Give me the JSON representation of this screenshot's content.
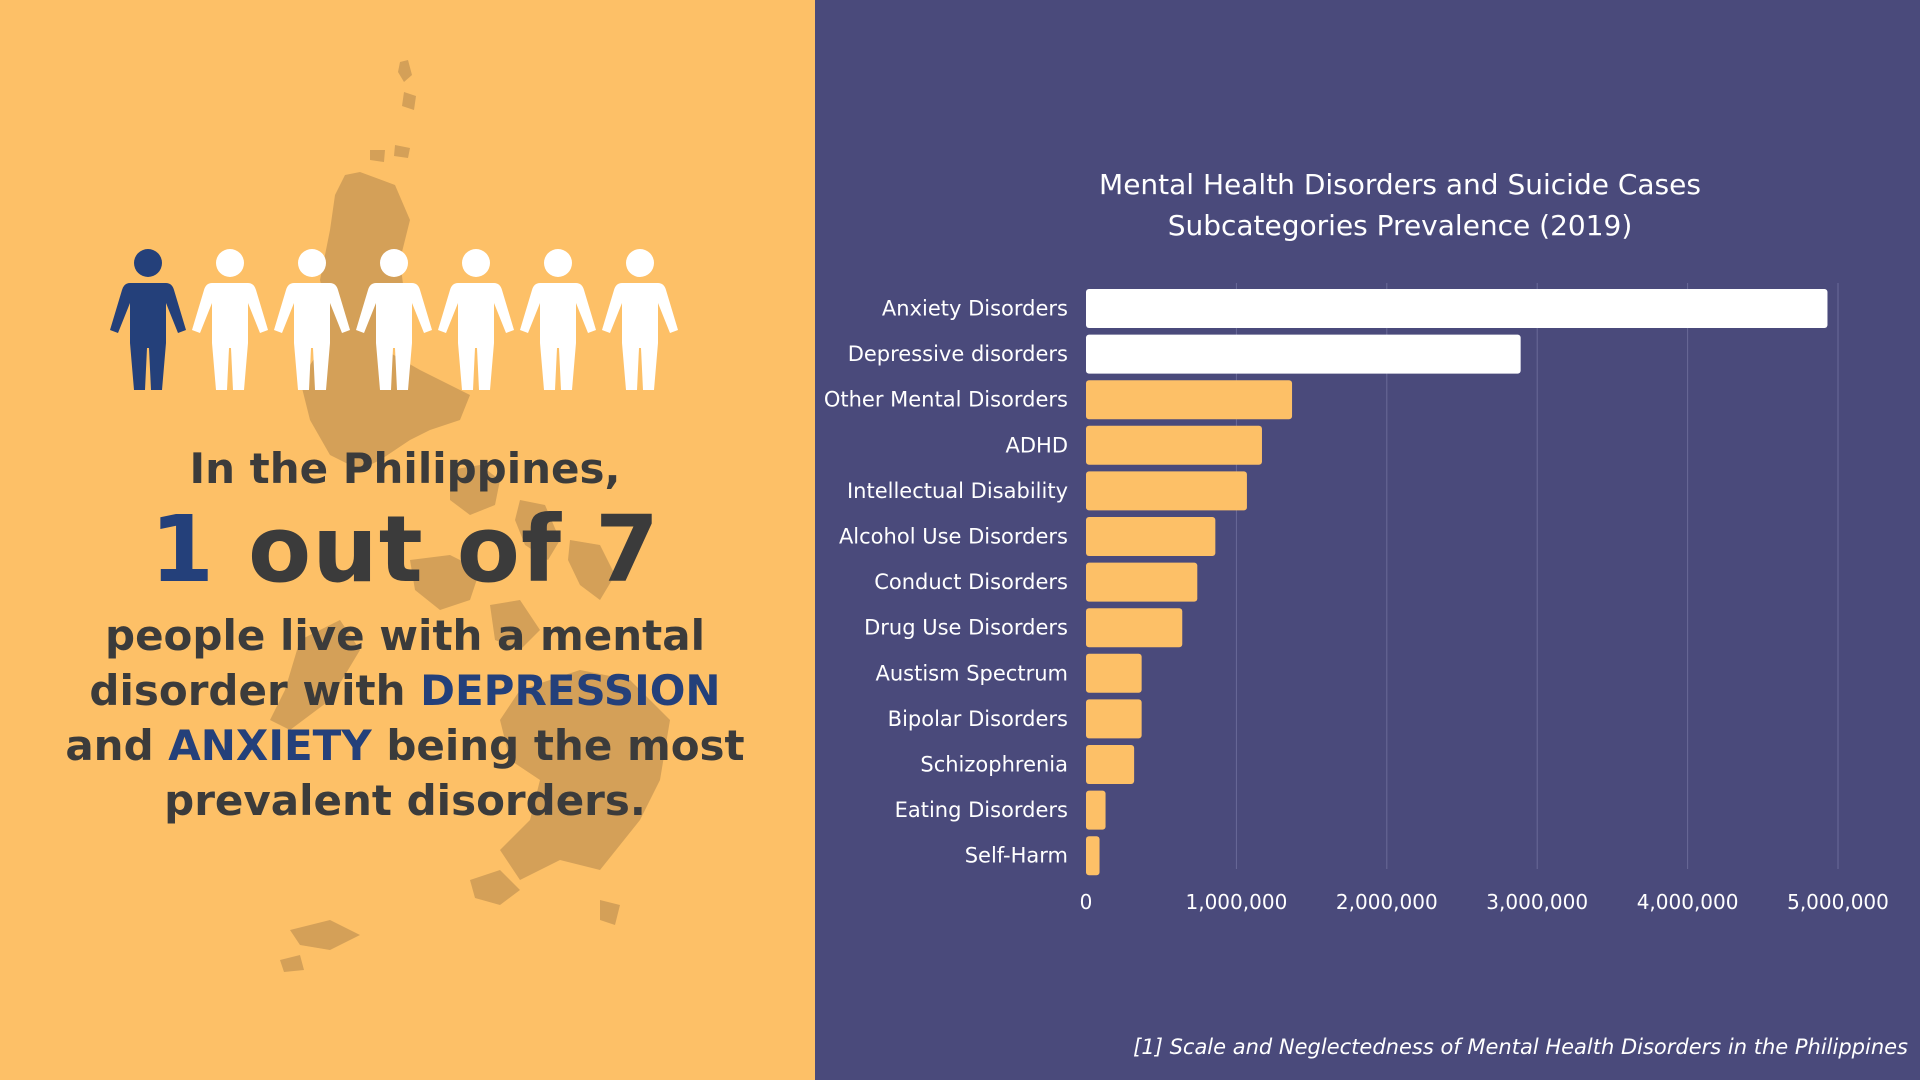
{
  "colors": {
    "left_bg": "#FDC067",
    "right_bg": "#4A4A7B",
    "highlight_bar": "#FFFFFF",
    "normal_bar": "#FDC067",
    "accent_blue": "#24407A",
    "text_dark": "#3B3B3B",
    "map_shadow": "#D4A058"
  },
  "infographic": {
    "highlighted_people": 1,
    "total_people": 7,
    "line1": "In the Philippines,",
    "stat_num": "1",
    "stat_rest": " out of 7",
    "line3_a": "people live with a mental",
    "line3_b": "disorder with ",
    "line3_c": "DEPRESSION",
    "line3_d": "and ",
    "line3_e": "ANXIETY",
    "line3_f": " being the most",
    "line3_g": "prevalent disorders."
  },
  "chart_data": {
    "type": "bar",
    "orientation": "horizontal",
    "title_line1": "Mental Health Disorders and Suicide Cases",
    "title_line2": "Subcategories Prevalence (2019)",
    "categories": [
      "Anxiety Disorders",
      "Depressive disorders",
      "Other Mental Disorders",
      "ADHD",
      "Intellectual Disability",
      "Alcohol Use Disorders",
      "Conduct Disorders",
      "Drug Use Disorders",
      "Austism Spectrum",
      "Bipolar Disorders",
      "Schizophrenia",
      "Eating Disorders",
      "Self-Harm"
    ],
    "values": [
      4930000,
      2890000,
      1370000,
      1170000,
      1070000,
      860000,
      740000,
      640000,
      370000,
      370000,
      320000,
      130000,
      90000
    ],
    "highlighted": [
      "Anxiety Disorders",
      "Depressive disorders"
    ],
    "xlim": [
      0,
      5000000
    ],
    "x_ticks": [
      0,
      1000000,
      2000000,
      3000000,
      4000000,
      5000000
    ],
    "x_tick_labels": [
      "0",
      "1,000,000",
      "2,000,000",
      "3,000,000",
      "4,000,000",
      "5,000,000"
    ],
    "grid": "vertical"
  },
  "source_note": "[1] Scale and Neglectedness of Mental Health Disorders in the Philippines"
}
